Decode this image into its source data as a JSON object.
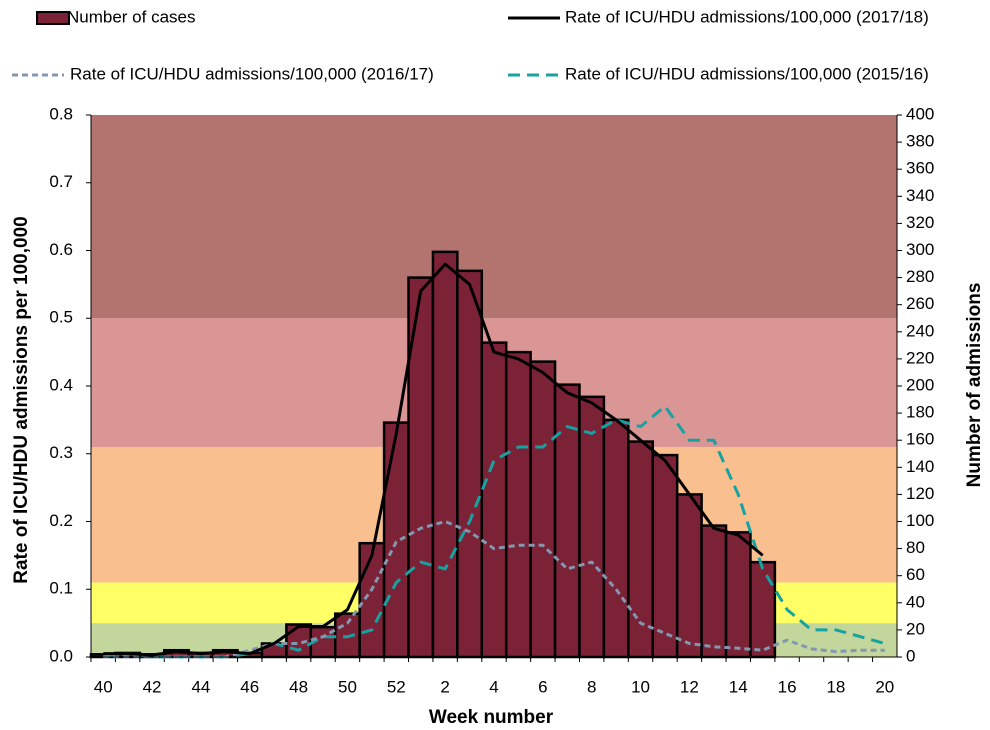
{
  "chart_data": {
    "type": "bar-line",
    "x_label": "Week number",
    "y_label": "Rate of ICU/HDU admissions per 100,000",
    "y2_label": "Number of admissions",
    "categories": [
      "40",
      null,
      "42",
      null,
      "44",
      null,
      "46",
      null,
      "48",
      null,
      "50",
      null,
      "52",
      null,
      "2",
      null,
      "4",
      null,
      "6",
      null,
      "8",
      null,
      "10",
      null,
      "12",
      null,
      "14",
      null,
      "16",
      null,
      "18",
      null,
      "20"
    ],
    "ylim": [
      0,
      0.8
    ],
    "yticks": [
      {
        "value": 0,
        "label": "0.0"
      },
      0.1,
      0.2,
      0.3,
      0.4,
      0.5,
      0.6,
      0.7,
      0.8
    ],
    "y2lim": [
      0,
      400
    ],
    "y2ticks": [
      0,
      20,
      40,
      60,
      80,
      100,
      120,
      140,
      160,
      180,
      200,
      220,
      240,
      260,
      280,
      300,
      320,
      340,
      360,
      380,
      400
    ],
    "bands": [
      {
        "from": 0,
        "to": 0.05,
        "color": "#c3d69b"
      },
      {
        "from": 0.05,
        "to": 0.11,
        "color": "#ffff66"
      },
      {
        "from": 0.11,
        "to": 0.31,
        "color": "#f9bf8f"
      },
      {
        "from": 0.31,
        "to": 0.5,
        "color": "#d99694"
      },
      {
        "from": 0.5,
        "to": 0.8,
        "color": "#b3736f"
      }
    ],
    "series": [
      {
        "name": "Number of cases",
        "type": "bar",
        "axis": "y2",
        "color": "#7b2236",
        "values": [
          2,
          3,
          2,
          5,
          3,
          5,
          3,
          10,
          24,
          22,
          32,
          84,
          173,
          280,
          299,
          285,
          232,
          225,
          218,
          201,
          192,
          175,
          159,
          149,
          120,
          97,
          92,
          70,
          null,
          null,
          null,
          null,
          null
        ]
      },
      {
        "name": "Rate of ICU/HDU admissions/100,000 (2017/18)",
        "type": "line",
        "color": "#000000",
        "dash": "none",
        "values": [
          0.005,
          0.005,
          0.003,
          0.008,
          0.005,
          0.008,
          0.005,
          0.02,
          0.045,
          0.045,
          0.07,
          0.15,
          0.33,
          0.54,
          0.58,
          0.55,
          0.45,
          0.44,
          0.42,
          0.39,
          0.375,
          0.35,
          0.32,
          0.29,
          0.24,
          0.19,
          0.18,
          0.15,
          null,
          null,
          null,
          null,
          null
        ]
      },
      {
        "name": "Rate of ICU/HDU admissions/100,000 (2016/17)",
        "type": "line",
        "color": "#8497b0",
        "dash": "6 4",
        "values": [
          0,
          0,
          0,
          0,
          0,
          0,
          0.01,
          0.02,
          0.02,
          0.03,
          0.05,
          0.1,
          0.17,
          0.19,
          0.2,
          0.185,
          0.16,
          0.165,
          0.165,
          0.13,
          0.14,
          0.1,
          0.05,
          0.035,
          0.02,
          0.015,
          0.013,
          0.01,
          0.025,
          0.012,
          0.008,
          0.01,
          0.01
        ]
      },
      {
        "name": "Rate of ICU/HDU admissions/100,000 (2015/16)",
        "type": "line",
        "color": "#17a2a2",
        "dash": "12 7",
        "values": [
          0,
          0.005,
          0,
          0,
          0,
          0,
          0.005,
          0.02,
          0.01,
          0.03,
          0.03,
          0.04,
          0.11,
          0.14,
          0.13,
          0.2,
          0.29,
          0.31,
          0.31,
          0.34,
          0.33,
          0.35,
          0.34,
          0.37,
          0.32,
          0.32,
          0.24,
          0.13,
          0.07,
          0.04,
          0.04,
          0.03,
          0.02
        ]
      }
    ]
  }
}
